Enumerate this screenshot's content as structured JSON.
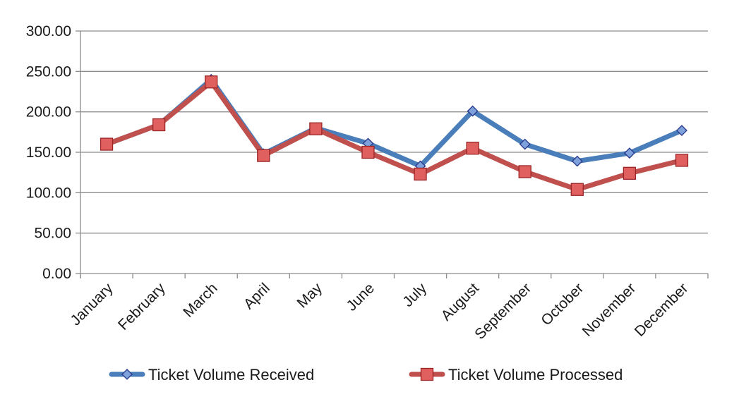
{
  "chart_data": {
    "type": "line",
    "title": "",
    "xlabel": "",
    "ylabel": "",
    "ylim": [
      0,
      300
    ],
    "yticks": [
      0,
      50,
      100,
      150,
      200,
      250,
      300
    ],
    "ytick_labels": [
      "0.00",
      "50.00",
      "100.00",
      "150.00",
      "200.00",
      "250.00",
      "300.00"
    ],
    "grid": true,
    "legend_position": "bottom",
    "categories": [
      "January",
      "February",
      "March",
      "April",
      "May",
      "June",
      "July",
      "August",
      "September",
      "October",
      "November",
      "December"
    ],
    "series": [
      {
        "name": "Ticket Volume Received",
        "marker": "diamond",
        "line_color": "#4a7ebb",
        "marker_fill": "#7ea1dc",
        "marker_stroke": "#27388a",
        "values": [
          160,
          184,
          240,
          148,
          180,
          161,
          133,
          201,
          160,
          139,
          149,
          177
        ]
      },
      {
        "name": "Ticket Volume Processed",
        "marker": "square",
        "line_color": "#c0504d",
        "marker_fill": "#e05f5f",
        "marker_stroke": "#9b2525",
        "values": [
          160,
          184,
          237,
          146,
          179,
          150,
          123,
          155,
          126,
          104,
          124,
          140
        ]
      }
    ]
  }
}
